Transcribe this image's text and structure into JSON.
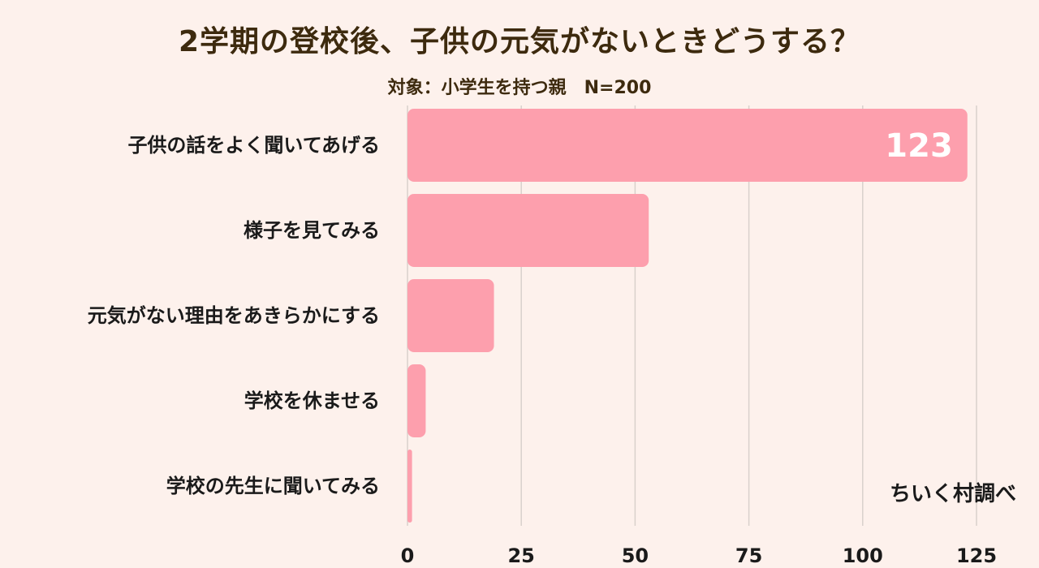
{
  "title": "2学期の登校後、子供の元気がないときどうする？",
  "subtitle": "対象：小学生を持つ親　N=200",
  "credit": "ちいく村調べ",
  "colors": {
    "bar": "#fd9fad",
    "grid": "#d9d1cc",
    "background": "#fdf1ec"
  },
  "chart_data": {
    "type": "bar",
    "orientation": "horizontal",
    "categories": [
      "子供の話をよく聞いてあげる",
      "様子を見てみる",
      "元気がない理由をあきらかにする",
      "学校を休ませる",
      "学校の先生に聞いてみる"
    ],
    "values": [
      123,
      53,
      19,
      4,
      1
    ],
    "data_labels": [
      "123",
      "",
      "",
      "",
      ""
    ],
    "xlim": [
      0,
      125
    ],
    "xticks": [
      0,
      25,
      50,
      75,
      100,
      125
    ],
    "grid": true
  }
}
